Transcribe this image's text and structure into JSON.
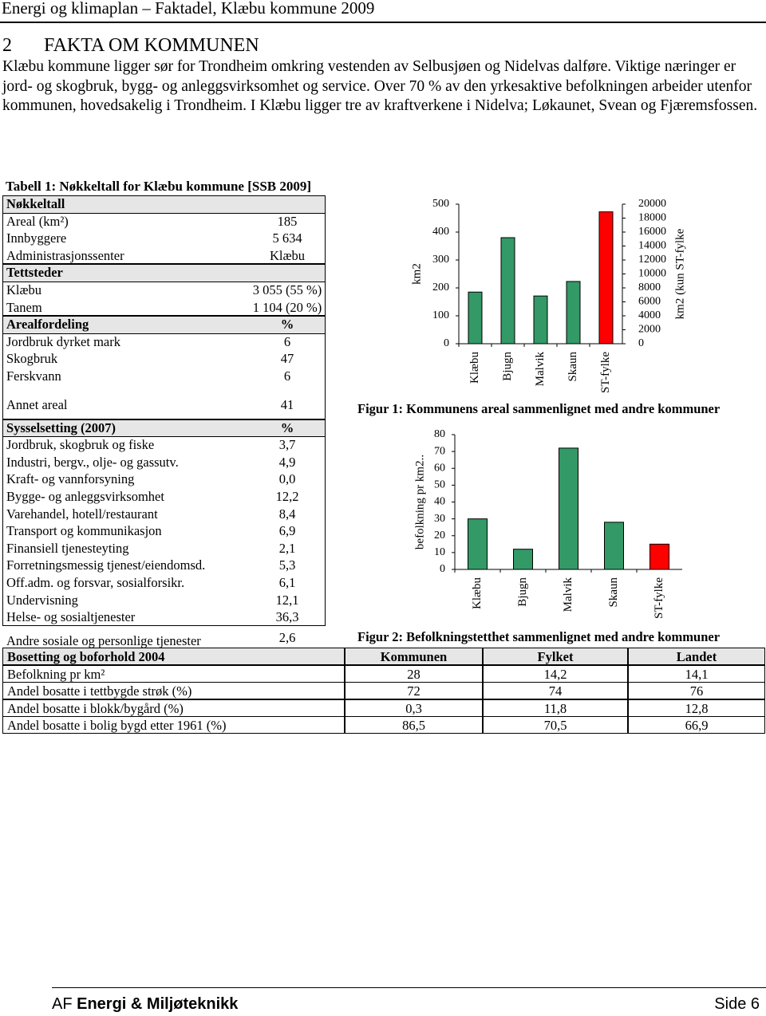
{
  "header": {
    "title": "Energi og klimaplan – Faktadel, Klæbu kommune 2009"
  },
  "section": {
    "number": "2",
    "title": "FAKTA OM KOMMUNEN"
  },
  "paragraph": "Klæbu kommune ligger sør for Trondheim omkring vestenden av Selbusjøen og Nidelvas dalføre. Viktige næringer er jord- og skogbruk, bygg- og anleggsvirksomhet og service. Over 70 % av den yrkesaktive befolkningen arbeider utenfor kommunen, hovedsakelig i Trondheim. I Klæbu ligger tre av kraftverkene i Nidelva; Løkaunet, Svean og Fjæremsfossen.",
  "table1": {
    "caption": "Tabell 1: Nøkkeltall for Klæbu kommune [SSB 2009]",
    "sections": [
      {
        "title": "Nøkkeltall",
        "rows": [
          [
            "Areal (km²)",
            "185"
          ],
          [
            "Innbyggere",
            "5 634"
          ],
          [
            "Administrasjonssenter",
            "Klæbu"
          ]
        ]
      },
      {
        "title": "Tettsteder",
        "rows": [
          [
            "Klæbu",
            "3 055 (55 %)"
          ],
          [
            "Tanem",
            "1 104 (20 %)"
          ]
        ]
      },
      {
        "title": "Arealfordeling",
        "unit": "%",
        "rows": [
          [
            "Jordbruk dyrket mark",
            "6"
          ],
          [
            "Skogbruk",
            "47"
          ],
          [
            "Ferskvann",
            "6"
          ],
          [
            "Annet areal",
            "41"
          ]
        ]
      },
      {
        "title": "Sysselsetting (2007)",
        "unit": "%",
        "rows": [
          [
            "Jordbruk, skogbruk og fiske",
            "3,7"
          ],
          [
            "Industri, bergv., olje- og gassutv.",
            "4,9"
          ],
          [
            "Kraft- og vannforsyning",
            "0,0"
          ],
          [
            "Bygge- og anleggsvirksomhet",
            "12,2"
          ],
          [
            "Varehandel, hotell/restaurant",
            "8,4"
          ],
          [
            "Transport og kommunikasjon",
            "6,9"
          ],
          [
            "Finansiell tjenesteyting",
            "2,1"
          ],
          [
            "Forretningsmessig tjenest/eiendomsd.",
            "5,3"
          ],
          [
            "Off.adm. og forsvar, sosialforsikr.",
            "6,1"
          ],
          [
            "Undervisning",
            "12,1"
          ],
          [
            "Helse- og sosialtjenester",
            "36,3"
          ],
          [
            "Andre sosiale og  personlige tjenester",
            "2,6"
          ]
        ]
      }
    ]
  },
  "chart_data": [
    {
      "type": "bar",
      "title": "Figur 1: Kommunens areal sammenlignet med andre kommuner",
      "ylabel": "km2",
      "y2label": "km2 (kun ST-fylke",
      "categories": [
        "Klæbu",
        "Bjugn",
        "Malvik",
        "Skaun",
        "ST-fylke"
      ],
      "series": [
        {
          "color": "#339966",
          "values": [
            185,
            380,
            171,
            223,
            null
          ]
        },
        {
          "color": "#ff0000",
          "axis": "y2",
          "values": [
            null,
            null,
            null,
            null,
            18900
          ]
        }
      ],
      "ylim": [
        0,
        500
      ],
      "yticks": [
        0,
        100,
        200,
        300,
        400,
        500
      ],
      "y2lim": [
        0,
        20000
      ],
      "y2ticks": [
        0,
        2000,
        4000,
        6000,
        8000,
        10000,
        12000,
        14000,
        16000,
        18000,
        20000
      ]
    },
    {
      "type": "bar",
      "title": "Figur 2: Befolkningstetthet sammenlignet med andre kommuner",
      "ylabel": "befolkning pr km2..",
      "categories": [
        "Klæbu",
        "Bjugn",
        "Malvik",
        "Skaun",
        "ST-fylke"
      ],
      "series": [
        {
          "color": "#339966",
          "values": [
            30,
            12,
            72,
            28,
            null
          ]
        },
        {
          "color": "#ff0000",
          "values": [
            null,
            null,
            null,
            null,
            15
          ]
        }
      ],
      "ylim": [
        0,
        80
      ],
      "yticks": [
        0,
        10,
        20,
        30,
        40,
        50,
        60,
        70,
        80
      ]
    }
  ],
  "table2": {
    "header": [
      "Bosetting og boforhold 2004",
      "Kommunen",
      "Fylket",
      "Landet"
    ],
    "rows": [
      [
        "Befolkning pr km²",
        "28",
        "14,2",
        "14,1"
      ],
      [
        "Andel bosatte i tettbygde strøk (%)",
        "72",
        "74",
        "76"
      ],
      [
        "Andel bosatte i blokk/bygård (%)",
        "0,3",
        "11,8",
        "12,8"
      ],
      [
        "Andel bosatte i bolig bygd etter 1961 (%)",
        "86,5",
        "70,5",
        "66,9"
      ]
    ]
  },
  "footer": {
    "company_prefix": "AF",
    "company_name": "Energi & Miljøteknikk",
    "page": "Side 6"
  }
}
